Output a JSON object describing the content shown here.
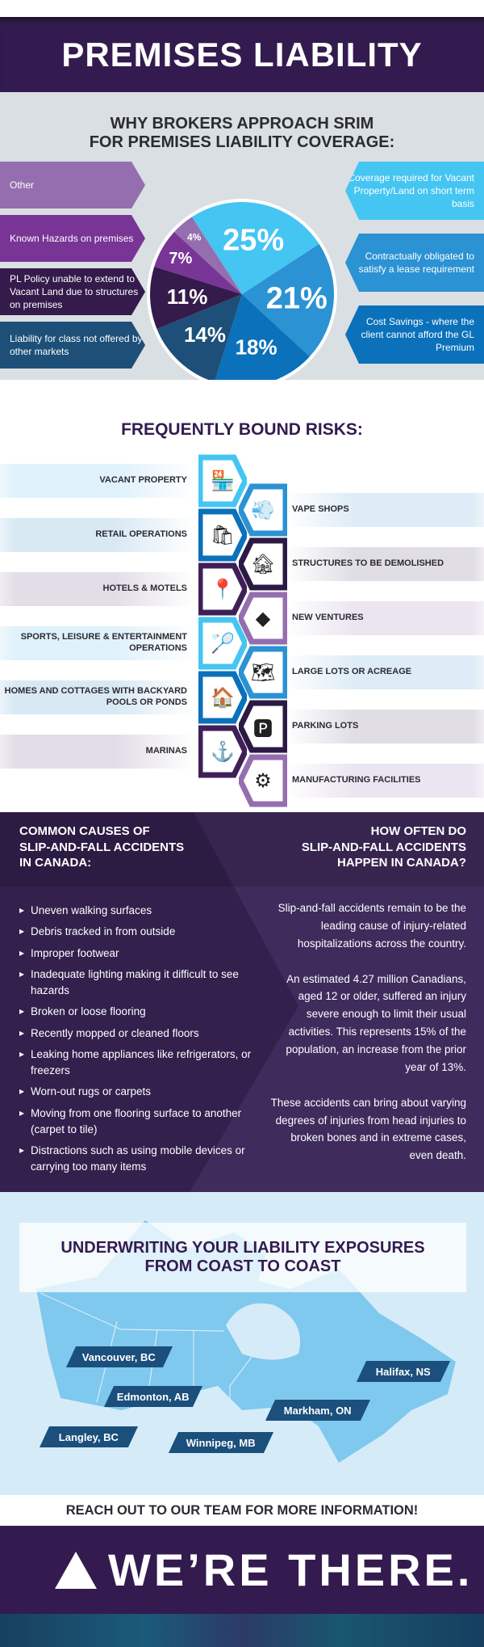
{
  "header": {
    "title": "PREMISES LIABILITY"
  },
  "pie_section": {
    "title_line1": "WHY BROKERS APPROACH SRIM",
    "title_line2": "FOR PREMISES LIABILITY COVERAGE:"
  },
  "chart_data": {
    "type": "pie",
    "title": "WHY BROKERS APPROACH SRIM FOR PREMISES LIABILITY COVERAGE:",
    "slices": [
      {
        "label": "Coverage required for Vacant Property/Land on short term basis",
        "value": 25,
        "display": "25%",
        "color": "#45c5f2"
      },
      {
        "label": "Contractually obligated to satisfy a lease requirement",
        "value": 21,
        "display": "21%",
        "color": "#2b92d3"
      },
      {
        "label": "Cost Savings - where the client cannot afford the GL Premium",
        "value": 18,
        "display": "18%",
        "color": "#0a71ba"
      },
      {
        "label": "Liability for class not offered by other markets",
        "value": 14,
        "display": "14%",
        "color": "#1d4f78"
      },
      {
        "label": "PL Policy unable to extend to Vacant Land due to structures on premises",
        "value": 11,
        "display": "11%",
        "color": "#341b4b"
      },
      {
        "label": "Known Hazards on premises",
        "value": 7,
        "display": "7%",
        "color": "#783596"
      },
      {
        "label": "Other",
        "value": 4,
        "display": "4%",
        "color": "#956eb0"
      }
    ]
  },
  "pie_tags": {
    "left": [
      {
        "text": "Other",
        "color": "#956eb0"
      },
      {
        "text": "Known Hazards on premises",
        "color": "#783596"
      },
      {
        "text": "PL Policy unable to extend to Vacant Land due to structures on premises",
        "color": "#341b4b"
      },
      {
        "text": "Liability for class not offered by other markets",
        "color": "#1d4f78"
      }
    ],
    "right": [
      {
        "text": "Coverage required for Vacant Property/Land on short term basis",
        "color": "#45c5f2"
      },
      {
        "text": "Contractually obligated to satisfy a lease requirement",
        "color": "#2b92d3"
      },
      {
        "text": "Cost Savings - where the client cannot afford the GL Premium",
        "color": "#0a71ba"
      }
    ]
  },
  "risks": {
    "title": "FREQUENTLY BOUND RISKS:",
    "left": [
      {
        "label": "VACANT PROPERTY",
        "icon": "storefront-icon",
        "glyph": "🏪",
        "color": "#45c5f2",
        "tint": "#dff1fa"
      },
      {
        "label": "RETAIL OPERATIONS",
        "icon": "shopping-bags-icon",
        "glyph": "🛍",
        "color": "#0a71ba",
        "tint": "#d9e9f4"
      },
      {
        "label": "HOTELS & MOTELS",
        "icon": "hotel-pin-icon",
        "glyph": "📍",
        "color": "#3f1f58",
        "tint": "#e3dde7"
      },
      {
        "label": "SPORTS, LEISURE & ENTERTAINMENT OPERATIONS",
        "icon": "sports-equipment-icon",
        "glyph": "🏸",
        "color": "#45c5f2",
        "tint": "#dff1fa"
      },
      {
        "label": "HOMES AND COTTAGES WITH BACKYARD POOLS OR PONDS",
        "icon": "house-icon",
        "glyph": "🏠",
        "color": "#0a71ba",
        "tint": "#d9e9f4"
      },
      {
        "label": "MARINAS",
        "icon": "dock-icon",
        "glyph": "⚓",
        "color": "#3f1f58",
        "tint": "#e3dde7"
      }
    ],
    "right": [
      {
        "label": "VAPE SHOPS",
        "icon": "vape-icon",
        "glyph": "💨",
        "color": "#2b92d3",
        "tint": "#ddecf6"
      },
      {
        "label": "STRUCTURES TO BE DEMOLISHED",
        "icon": "damaged-house-icon",
        "glyph": "🏚",
        "color": "#2c1a45",
        "tint": "#e0dde5"
      },
      {
        "label": "NEW VENTURES",
        "icon": "now-open-sign-icon",
        "glyph": "◆",
        "color": "#956eb0",
        "tint": "#ebe5f1"
      },
      {
        "label": "LARGE LOTS OR ACREAGE",
        "icon": "map-pin-icon",
        "glyph": "🗺",
        "color": "#2b92d3",
        "tint": "#ddecf6"
      },
      {
        "label": "PARKING LOTS",
        "icon": "parking-icon",
        "glyph": "🅿",
        "color": "#2c1a45",
        "tint": "#e0dde5"
      },
      {
        "label": "MANUFACTURING FACILITIES",
        "icon": "gears-icon",
        "glyph": "⚙",
        "color": "#956eb0",
        "tint": "#ebe5f1"
      }
    ]
  },
  "slip": {
    "causes_title": [
      "COMMON CAUSES OF",
      "SLIP-AND-FALL ACCIDENTS",
      "IN CANADA:"
    ],
    "causes": [
      "Uneven walking surfaces",
      "Debris tracked in from outside",
      "Improper footwear",
      "Inadequate lighting making it difficult to see hazards",
      "Broken or loose flooring",
      "Recently mopped or cleaned floors",
      "Leaking home appliances like refrigerators, or freezers",
      "Worn-out rugs or carpets",
      "Moving from one flooring surface to another (carpet to tile)",
      "Distractions such as using mobile devices or carrying too many items"
    ],
    "how_title": [
      "HOW OFTEN DO",
      "SLIP-AND-FALL ACCIDENTS",
      "HAPPEN IN CANADA?"
    ],
    "how_paragraphs": [
      "Slip-and-fall accidents remain to be the leading cause of injury-related hospitalizations across the country.",
      "An estimated 4.27 million Canadians, aged 12 or older, suffered an injury severe enough to limit their usual activities. This represents 15% of the population, an increase from the prior year of 13%.",
      "These accidents can bring about varying degrees of injuries from head injuries to broken bones and in extreme cases, even death."
    ]
  },
  "map": {
    "title_line1": "UNDERWRITING YOUR LIABILITY EXPOSURES",
    "title_line2": "FROM COAST TO COAST",
    "cities": [
      "Vancouver, BC",
      "Edmonton, AB",
      "Langley, BC",
      "Winnipeg, MB",
      "Markham, ON",
      "Halifax, NS"
    ]
  },
  "cta": "REACH OUT TO OUR TEAM FOR MORE INFORMATION!",
  "footer": {
    "tagline": "WE’RE THERE."
  }
}
